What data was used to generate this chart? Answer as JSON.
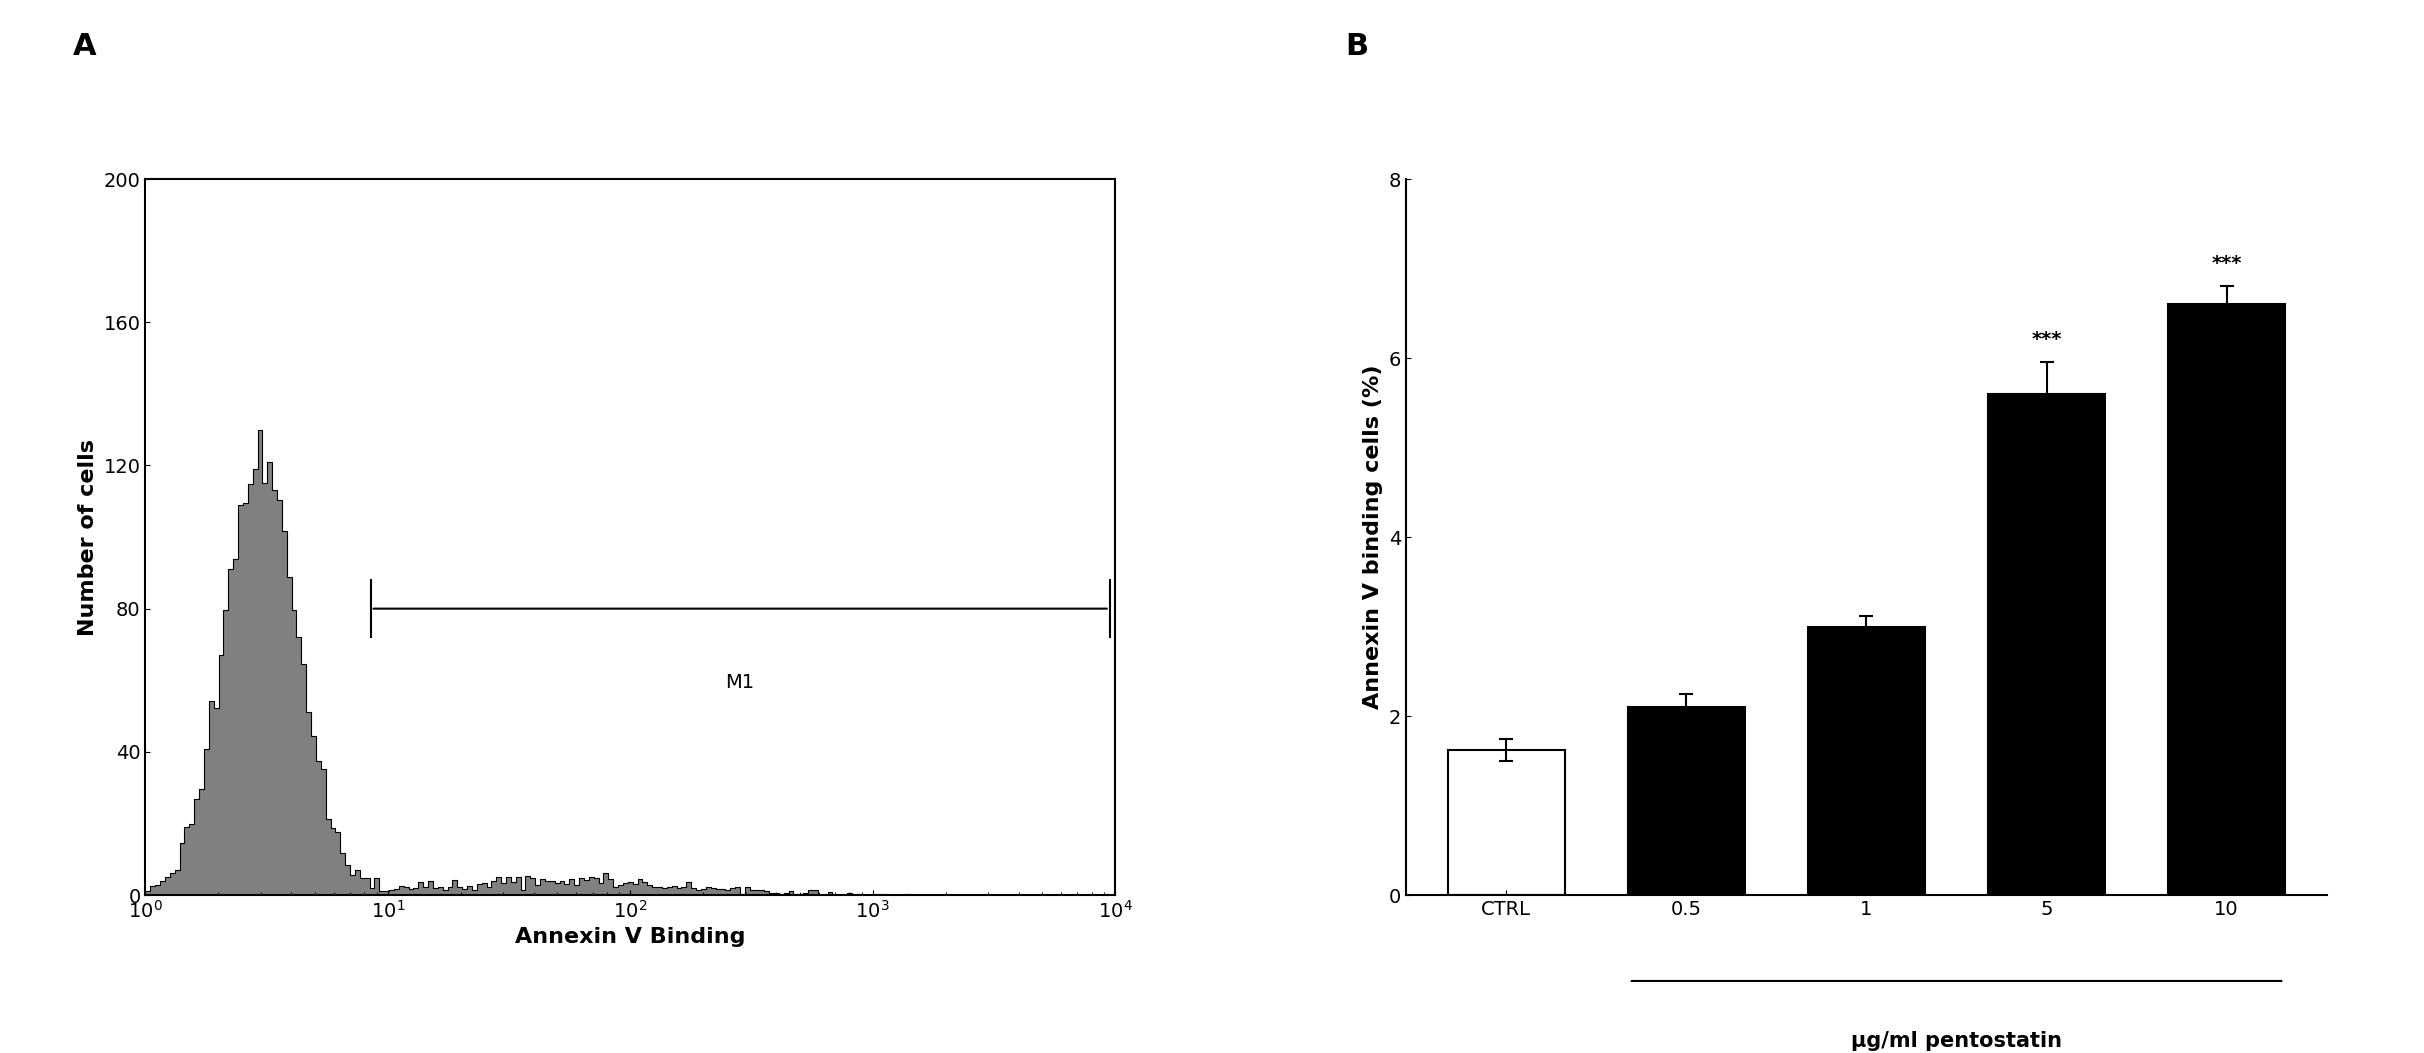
{
  "panel_a_label": "A",
  "panel_b_label": "B",
  "hist_xlabel": "Annexin V Binding",
  "hist_ylabel": "Number of cells",
  "hist_ylim": [
    0,
    200
  ],
  "hist_yticks": [
    0,
    40,
    80,
    120,
    160,
    200
  ],
  "hist_xlim_log": [
    1,
    10000
  ],
  "hist_fill_color": "#808080",
  "hist_edge_color": "#000000",
  "m1_label": "M1",
  "bar_categories": [
    "CTRL",
    "0.5",
    "1",
    "5",
    "10"
  ],
  "bar_values": [
    1.62,
    2.1,
    3.0,
    5.6,
    6.6
  ],
  "bar_errors": [
    0.12,
    0.15,
    0.12,
    0.35,
    0.2
  ],
  "bar_colors": [
    "#ffffff",
    "#000000",
    "#000000",
    "#000000",
    "#000000"
  ],
  "bar_edge_color": "#000000",
  "bar_ylabel": "Annexin V binding cells (%)",
  "bar_ylim": [
    0,
    8
  ],
  "bar_yticks": [
    0,
    2,
    4,
    6,
    8
  ],
  "bar_xlabel_main": "μg/ml pentostatin",
  "significant_bars": [
    3,
    4
  ],
  "sig_label": "***"
}
